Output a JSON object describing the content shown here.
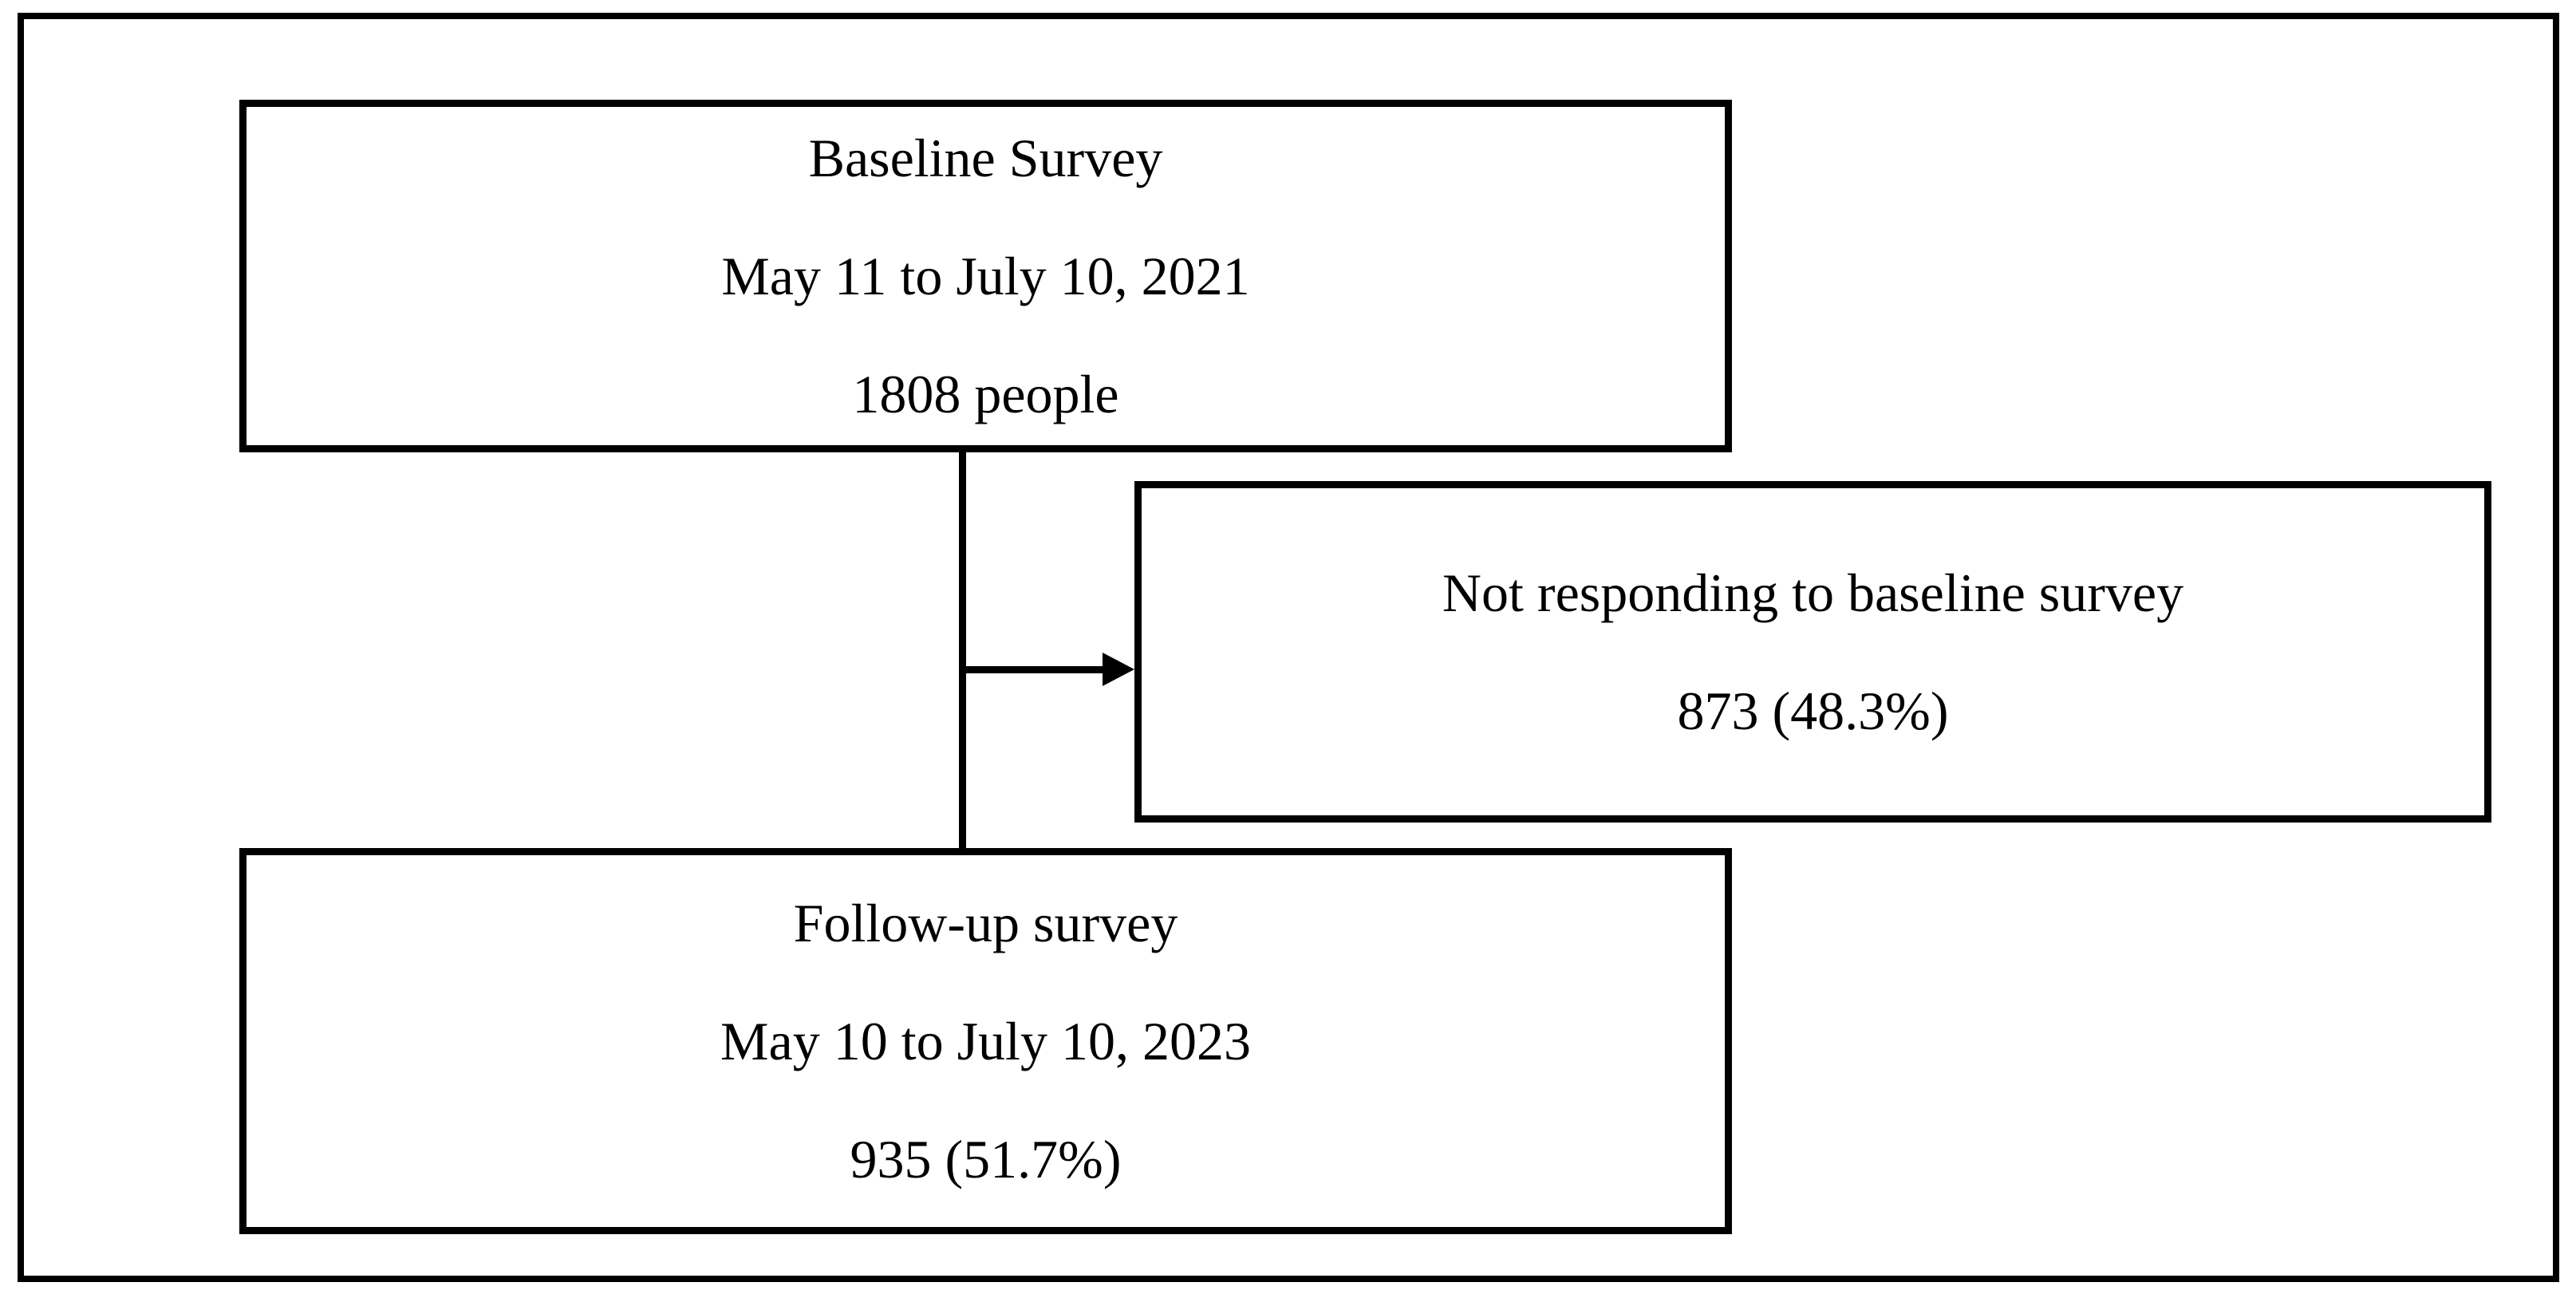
{
  "figure": {
    "boxes": {
      "baseline": {
        "title": "Baseline Survey",
        "dates": "May 11 to July 10, 2021",
        "count": "1808 people"
      },
      "not_responding": {
        "title": "Not responding to baseline survey",
        "count": "873 (48.3%)"
      },
      "follow_up": {
        "title": "Follow-up survey",
        "dates": "May 10 to July 10, 2023",
        "count": "935 (51.7%)"
      }
    },
    "connectors": {
      "baseline_to_followup": "vertical line from Baseline Survey box to Follow-up survey box",
      "branch_to_not_responding": "horizontal arrow pointing right into Not responding box"
    },
    "colors": {
      "line": "#000000",
      "background": "#ffffff"
    }
  }
}
